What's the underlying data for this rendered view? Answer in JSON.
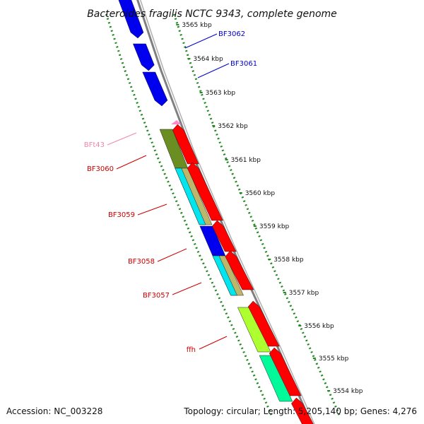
{
  "title": "Bacteroides fragilis NCTC 9343, complete genome",
  "footer": {
    "accession": "Accession: NC_003228",
    "topology": "Topology: circular; Length: 5,205,140 bp; Genes: 4,276"
  },
  "kbp_labels": [
    "3565 kbp",
    "3564 kbp",
    "3563 kbp",
    "3562 kbp",
    "3561 kbp",
    "3560 kbp",
    "3559 kbp",
    "3558 kbp",
    "3557 kbp",
    "3556 kbp",
    "3555 kbp",
    "3554 kbp"
  ],
  "gene_labels": [
    {
      "text": "BF3062",
      "color": "#0000cc"
    },
    {
      "text": "BF3061",
      "color": "#0000cc"
    },
    {
      "text": "BFt43",
      "color": "#ee88aa"
    },
    {
      "text": "BF3060",
      "color": "#cc0000"
    },
    {
      "text": "BF3059",
      "color": "#cc0000"
    },
    {
      "text": "BF3058",
      "color": "#cc0000"
    },
    {
      "text": "BF3057",
      "color": "#cc0000"
    },
    {
      "text": "ffh",
      "color": "#cc0000"
    }
  ],
  "colors": {
    "blue_gene": "#0000ee",
    "red_gene": "#ff0000",
    "olive": "#6b8e23",
    "khaki": "#bdb76b",
    "cyan": "#00e5ee",
    "yellowgreen": "#adff2f",
    "springgreen": "#00fa9a",
    "trna": "#ff88cc",
    "backbone": "#808080",
    "ticks": "#228822"
  }
}
